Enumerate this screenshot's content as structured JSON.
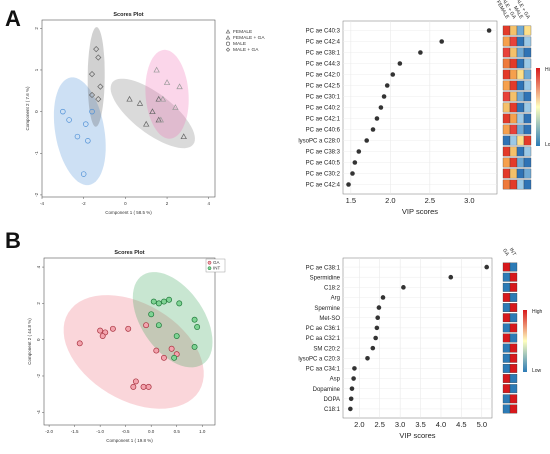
{
  "panel_labels": [
    "A",
    "B"
  ],
  "colors": {
    "A_female": "#7a7a7a",
    "A_female_ga": "#f26bb5",
    "A_male": "#4d8fd6",
    "A_male_ga": "#5a5a5a",
    "B_ga": "#ee6b7a",
    "B_int": "#3aa55a",
    "heat_high": "#d7191c",
    "heat_mid": "#ffffbf",
    "heat_low": "#2c7bb6"
  },
  "heat_legend": {
    "high": "High",
    "low": "Low"
  },
  "chart_data": [
    {
      "id": "A-scores",
      "type": "scatter",
      "title": "Scores Plot",
      "xlabel": "Component 1 ( 58.5 %)",
      "ylabel": "Component 2 ( 7.6 %)",
      "xlim": [
        -4,
        4.3
      ],
      "ylim": [
        -2.05,
        2.2
      ],
      "xticks": [
        "-4",
        "-2",
        "0",
        "2",
        "4"
      ],
      "yticks": [
        "-2",
        "-1",
        "0",
        "1",
        "2"
      ],
      "legend": [
        "FEMALE",
        "FEMALE + GA",
        "MALE",
        "MALE + GA"
      ],
      "series": [
        {
          "name": "FEMALE",
          "marker": "triangle",
          "points": [
            [
              0.2,
              0.3
            ],
            [
              0.7,
              0.2
            ],
            [
              1.6,
              0.3
            ],
            [
              1.3,
              0.0
            ],
            [
              1.6,
              -0.2
            ],
            [
              2.8,
              -0.6
            ],
            [
              1.0,
              -0.3
            ]
          ]
        },
        {
          "name": "FEMALE + GA",
          "marker": "triangle",
          "points": [
            [
              1.5,
              1.0
            ],
            [
              2.0,
              0.7
            ],
            [
              2.6,
              0.6
            ],
            [
              1.8,
              0.3
            ],
            [
              1.7,
              -0.2
            ],
            [
              2.4,
              0.1
            ]
          ]
        },
        {
          "name": "MALE",
          "marker": "circle",
          "points": [
            [
              -3.0,
              0.0
            ],
            [
              -2.7,
              -0.2
            ],
            [
              -2.3,
              -0.6
            ],
            [
              -1.9,
              -0.3
            ],
            [
              -1.8,
              -0.7
            ],
            [
              -2.0,
              -1.5
            ],
            [
              -1.6,
              0.0
            ]
          ]
        },
        {
          "name": "MALE + GA",
          "marker": "diamond",
          "points": [
            [
              -1.4,
              1.5
            ],
            [
              -1.3,
              1.3
            ],
            [
              -1.6,
              0.9
            ],
            [
              -1.2,
              0.6
            ],
            [
              -1.6,
              0.4
            ],
            [
              -1.3,
              0.3
            ]
          ]
        }
      ]
    },
    {
      "id": "A-vip",
      "type": "scatter",
      "xlabel": "VIP scores",
      "xlim": [
        1.4,
        3.35
      ],
      "xticks": [
        "1.5",
        "2.0",
        "2.5",
        "3.0"
      ],
      "columns": [
        "FEMALE",
        "FEMALE + GA",
        "MALE",
        "MALE + GA"
      ],
      "features": [
        "PC ae C40:3",
        "PC ae C42:4",
        "PC ae C38:1",
        "PC ae C44:3",
        "PC ae C42:0",
        "PC ae C42:5",
        "PC ae C30:1",
        "PC ae C40:2",
        "PC ae C42:1",
        "PC ae C40:6",
        "lysoPC a C28:0",
        "PC ae C38:3",
        "PC ae C40:5",
        "PC ae C30:2",
        "PC ae C42:4"
      ],
      "values": [
        3.25,
        2.65,
        2.38,
        2.12,
        2.03,
        1.96,
        1.92,
        1.88,
        1.83,
        1.78,
        1.7,
        1.6,
        1.55,
        1.52,
        1.47
      ],
      "heatmap": [
        [
          "#e33a2a",
          "#f5c16a",
          "#6fa9d4",
          "#fddf8a"
        ],
        [
          "#f6a04d",
          "#e8413a",
          "#2f73b5",
          "#9cc9e6"
        ],
        [
          "#e8413a",
          "#f5c16a",
          "#6fa9d4",
          "#2f73b5"
        ],
        [
          "#ee7a3b",
          "#e33a2a",
          "#2f73b5",
          "#9cc9e6"
        ],
        [
          "#e33a2a",
          "#f6a04d",
          "#fddf8a",
          "#6fa9d4"
        ],
        [
          "#f6a04d",
          "#e33a2a",
          "#2f73b5",
          "#9cc9e6"
        ],
        [
          "#e8413a",
          "#f5c16a",
          "#6fa9d4",
          "#2f73b5"
        ],
        [
          "#f5c16a",
          "#e33a2a",
          "#2f73b5",
          "#9cc9e6"
        ],
        [
          "#e33a2a",
          "#f6a04d",
          "#9cc9e6",
          "#2f73b5"
        ],
        [
          "#f6a04d",
          "#e8413a",
          "#6fa9d4",
          "#2f73b5"
        ],
        [
          "#2f73b5",
          "#9cc9e6",
          "#fddf8a",
          "#e33a2a"
        ],
        [
          "#e33a2a",
          "#f5c16a",
          "#2f73b5",
          "#9cc9e6"
        ],
        [
          "#f6a04d",
          "#e33a2a",
          "#6fa9d4",
          "#2f73b5"
        ],
        [
          "#e33a2a",
          "#f5c16a",
          "#2f73b5",
          "#6fa9d4"
        ],
        [
          "#ee7a3b",
          "#e33a2a",
          "#9cc9e6",
          "#2f73b5"
        ]
      ]
    },
    {
      "id": "B-scores",
      "type": "scatter",
      "title": "Scores Plot",
      "xlabel": "Component 1 ( 19.8 %)",
      "ylabel": "Component 2 ( 44.8 %)",
      "xlim": [
        -2.1,
        1.25
      ],
      "ylim": [
        -4.7,
        4.5
      ],
      "xticks": [
        "-2.0",
        "-1.5",
        "-1.0",
        "-0.5",
        "0.0",
        "0.5",
        "1.0"
      ],
      "yticks": [
        "-4",
        "-2",
        "0",
        "2",
        "4"
      ],
      "legend": [
        "GA",
        "INT"
      ],
      "series": [
        {
          "name": "GA",
          "marker": "circle",
          "points": [
            [
              -1.4,
              -0.2
            ],
            [
              -1.0,
              0.5
            ],
            [
              -0.9,
              0.4
            ],
            [
              -0.95,
              0.2
            ],
            [
              -0.75,
              0.6
            ],
            [
              -0.45,
              0.6
            ],
            [
              -0.1,
              0.8
            ],
            [
              0.1,
              -0.6
            ],
            [
              0.25,
              -1.0
            ],
            [
              0.4,
              -0.5
            ],
            [
              0.5,
              -0.8
            ],
            [
              -0.35,
              -2.6
            ],
            [
              -0.3,
              -2.3
            ],
            [
              -0.15,
              -2.6
            ],
            [
              -0.05,
              -2.6
            ]
          ]
        },
        {
          "name": "INT",
          "marker": "circle",
          "points": [
            [
              0.05,
              2.1
            ],
            [
              0.15,
              2.0
            ],
            [
              0.25,
              2.1
            ],
            [
              0.35,
              2.2
            ],
            [
              0.55,
              2.0
            ],
            [
              0.85,
              1.1
            ],
            [
              0.9,
              0.7
            ],
            [
              0.85,
              -0.4
            ],
            [
              0.5,
              0.2
            ],
            [
              0.45,
              -1.0
            ],
            [
              0.0,
              1.4
            ],
            [
              0.15,
              0.8
            ]
          ]
        }
      ]
    },
    {
      "id": "B-vip",
      "type": "scatter",
      "xlabel": "VIP scores",
      "xlim": [
        1.6,
        5.25
      ],
      "xticks": [
        "2.0",
        "2.5",
        "3.0",
        "3.5",
        "4.0",
        "4.5",
        "5.0"
      ],
      "columns": [
        "GA",
        "INT"
      ],
      "features": [
        "PC ae C38:1",
        "Spermidine",
        "C18:2",
        "Arg",
        "Spermine",
        "Met-SO",
        "PC ae C36:1",
        "PC aa C32:1",
        "SM C20:2",
        "lysoPC a C20:3",
        "PC aa C34:1",
        "Asp",
        "Dopamine",
        "DOPA",
        "C18:1"
      ],
      "values": [
        5.12,
        4.24,
        3.08,
        2.58,
        2.48,
        2.45,
        2.43,
        2.4,
        2.33,
        2.2,
        1.88,
        1.86,
        1.82,
        1.8,
        1.78
      ],
      "heatmap": [
        [
          "#d7191c",
          "#2c7bb6"
        ],
        [
          "#2c7bb6",
          "#d7191c"
        ],
        [
          "#2c7bb6",
          "#d7191c"
        ],
        [
          "#d7191c",
          "#2c7bb6"
        ],
        [
          "#2c7bb6",
          "#d7191c"
        ],
        [
          "#d7191c",
          "#2c7bb6"
        ],
        [
          "#2c7bb6",
          "#d7191c"
        ],
        [
          "#d7191c",
          "#2c7bb6"
        ],
        [
          "#2c7bb6",
          "#d7191c"
        ],
        [
          "#2c7bb6",
          "#d7191c"
        ],
        [
          "#2c7bb6",
          "#d7191c"
        ],
        [
          "#d7191c",
          "#2c7bb6"
        ],
        [
          "#d7191c",
          "#2c7bb6"
        ],
        [
          "#2c7bb6",
          "#d7191c"
        ],
        [
          "#2c7bb6",
          "#d7191c"
        ]
      ]
    }
  ]
}
